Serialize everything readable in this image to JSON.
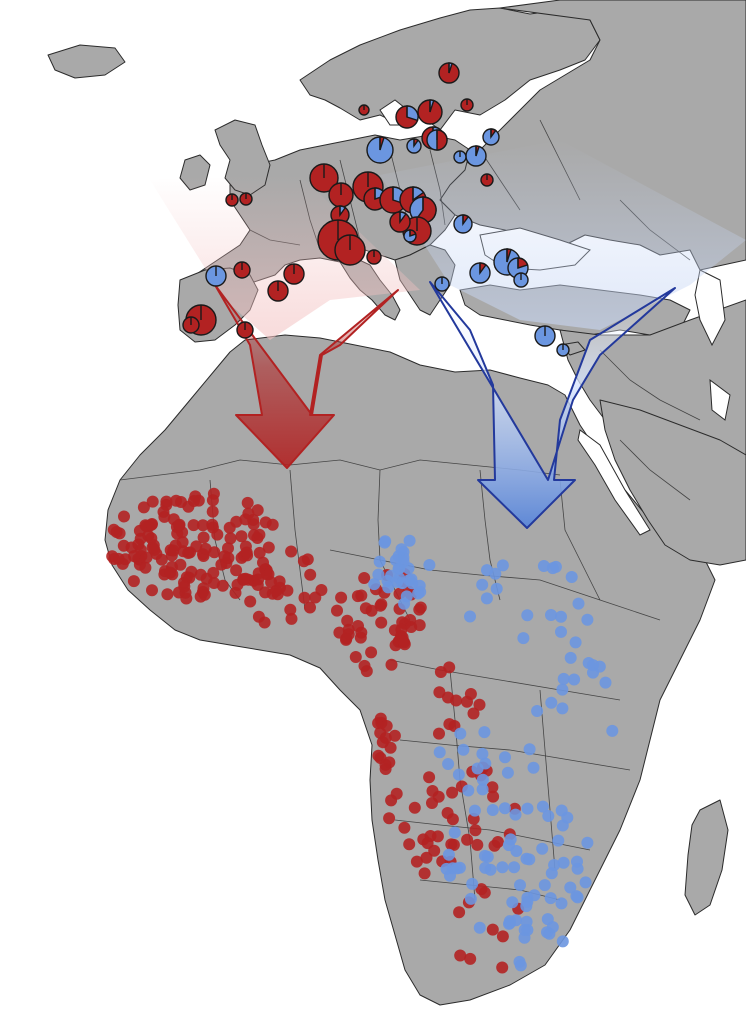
{
  "map": {
    "colors": {
      "western_route": "#b22222",
      "eastern_route": "#6b96e0",
      "land": "#a9a9a9",
      "water": "#ffffff",
      "border": "#2b2b2b"
    },
    "routes": [
      {
        "id": "western-route",
        "color": "#b22222"
      },
      {
        "id": "eastern-route",
        "color": "#6b96e0"
      }
    ]
  }
}
